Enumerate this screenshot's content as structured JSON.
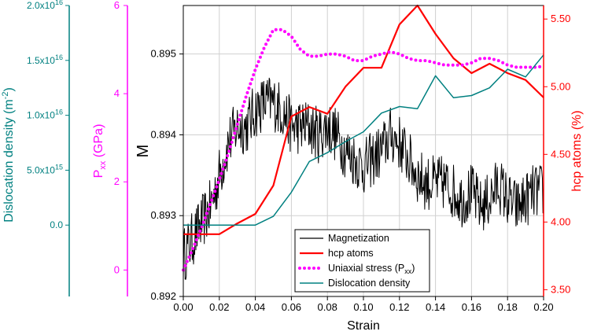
{
  "chart_data": {
    "type": "line",
    "title": "",
    "xlabel": "Strain",
    "xlim": [
      0,
      0.2
    ],
    "xticks": [
      "0.00",
      "0.02",
      "0.04",
      "0.06",
      "0.08",
      "0.10",
      "0.12",
      "0.14",
      "0.16",
      "0.18",
      "0.20"
    ],
    "grid": true,
    "legend_position": "bottom-center",
    "axes": [
      {
        "id": "M",
        "side": "left",
        "label": "M",
        "color": "#000000",
        "range": [
          0.892,
          0.8956
        ],
        "ticks": [
          "0.892",
          "0.893",
          "0.894",
          "0.895"
        ]
      },
      {
        "id": "Pxx",
        "side": "left-outer",
        "label_main": "P",
        "label_sub": "xx",
        "label_unit": " (GPa)",
        "color": "#ff00ff",
        "range": [
          -0.6,
          6.0
        ],
        "ticks": [
          "0",
          "2",
          "4",
          "6"
        ]
      },
      {
        "id": "disloc",
        "side": "left-outermost",
        "label_main": "Dislocation density (m",
        "label_sup": "-2",
        "label_end": ")",
        "color": "#008080",
        "range": [
          -0.65,
          2.0
        ],
        "tick_values": [
          0,
          0.5,
          1.0,
          1.5,
          2.0
        ],
        "ticks": [
          "0.0",
          "5.0x10^15",
          "1.0x10^16",
          "1.5x10^16",
          "2.0x10^16"
        ]
      },
      {
        "id": "hcp",
        "side": "right",
        "label": "hcp atoms (%)",
        "color": "#ff0000",
        "range": [
          3.45,
          5.6
        ],
        "ticks": [
          "3.50",
          "4.00",
          "4.50",
          "5.00",
          "5.50"
        ]
      }
    ],
    "series": [
      {
        "name": "Magnetization",
        "axis": "M",
        "color": "#000000",
        "style": "noisy-line",
        "x": [
          0,
          0.005,
          0.01,
          0.015,
          0.02,
          0.025,
          0.03,
          0.035,
          0.04,
          0.045,
          0.05,
          0.055,
          0.06,
          0.065,
          0.07,
          0.075,
          0.08,
          0.085,
          0.09,
          0.095,
          0.1,
          0.105,
          0.11,
          0.115,
          0.12,
          0.125,
          0.13,
          0.135,
          0.14,
          0.145,
          0.15,
          0.155,
          0.16,
          0.165,
          0.17,
          0.175,
          0.18,
          0.185,
          0.19,
          0.195,
          0.2
        ],
        "y": [
          0.8925,
          0.8927,
          0.8929,
          0.8931,
          0.8935,
          0.8939,
          0.8941,
          0.8941,
          0.8943,
          0.8944,
          0.8944,
          0.8943,
          0.8941,
          0.8941,
          0.8941,
          0.894,
          0.8941,
          0.894,
          0.8938,
          0.8937,
          0.8936,
          0.8937,
          0.8938,
          0.894,
          0.8939,
          0.8937,
          0.8935,
          0.8934,
          0.8934,
          0.8934,
          0.8933,
          0.8932,
          0.8933,
          0.8931,
          0.8932,
          0.8934,
          0.8932,
          0.8931,
          0.8932,
          0.8933,
          0.8933
        ]
      },
      {
        "name": "hcp atoms",
        "axis": "hcp",
        "color": "#ff0000",
        "style": "solid",
        "x": [
          0,
          0.02,
          0.03,
          0.04,
          0.05,
          0.06,
          0.07,
          0.08,
          0.09,
          0.1,
          0.11,
          0.12,
          0.13,
          0.14,
          0.15,
          0.16,
          0.17,
          0.18,
          0.19,
          0.2
        ],
        "y": [
          3.91,
          3.91,
          3.99,
          4.06,
          4.27,
          4.78,
          4.85,
          4.8,
          5.0,
          5.14,
          5.14,
          5.46,
          5.6,
          5.39,
          5.21,
          5.1,
          5.17,
          5.1,
          5.05,
          4.92
        ]
      },
      {
        "name": "Uniaxial stress (P",
        "name_sub": "xx",
        "name_end": ")",
        "axis": "Pxx",
        "color": "#ff00ff",
        "style": "dotted",
        "x": [
          0,
          0.005,
          0.01,
          0.015,
          0.02,
          0.025,
          0.03,
          0.035,
          0.04,
          0.045,
          0.05,
          0.055,
          0.06,
          0.065,
          0.07,
          0.075,
          0.08,
          0.085,
          0.09,
          0.095,
          0.1,
          0.105,
          0.11,
          0.115,
          0.12,
          0.125,
          0.13,
          0.135,
          0.14,
          0.145,
          0.15,
          0.155,
          0.16,
          0.165,
          0.17,
          0.175,
          0.18,
          0.185,
          0.19,
          0.195,
          0.2
        ],
        "y": [
          0.0,
          0.45,
          0.95,
          1.5,
          2.05,
          2.65,
          3.3,
          3.95,
          4.55,
          5.05,
          5.45,
          5.45,
          5.3,
          5.0,
          4.85,
          4.85,
          4.9,
          4.9,
          4.85,
          4.75,
          4.75,
          4.85,
          4.9,
          4.95,
          4.9,
          4.8,
          4.75,
          4.75,
          4.7,
          4.65,
          4.65,
          4.65,
          4.7,
          4.8,
          4.8,
          4.75,
          4.65,
          4.6,
          4.6,
          4.6,
          4.62
        ]
      },
      {
        "name": "Dislocation density",
        "axis": "disloc",
        "color": "#008080",
        "style": "solid",
        "x": [
          0,
          0.02,
          0.03,
          0.04,
          0.05,
          0.06,
          0.07,
          0.08,
          0.09,
          0.1,
          0.11,
          0.12,
          0.13,
          0.14,
          0.15,
          0.16,
          0.17,
          0.18,
          0.19,
          0.2
        ],
        "y": [
          0.0,
          0.0,
          0.0,
          0.0,
          0.08,
          0.3,
          0.58,
          0.66,
          0.76,
          0.85,
          1.02,
          1.08,
          1.06,
          1.36,
          1.16,
          1.18,
          1.25,
          1.42,
          1.35,
          1.55
        ]
      }
    ]
  }
}
